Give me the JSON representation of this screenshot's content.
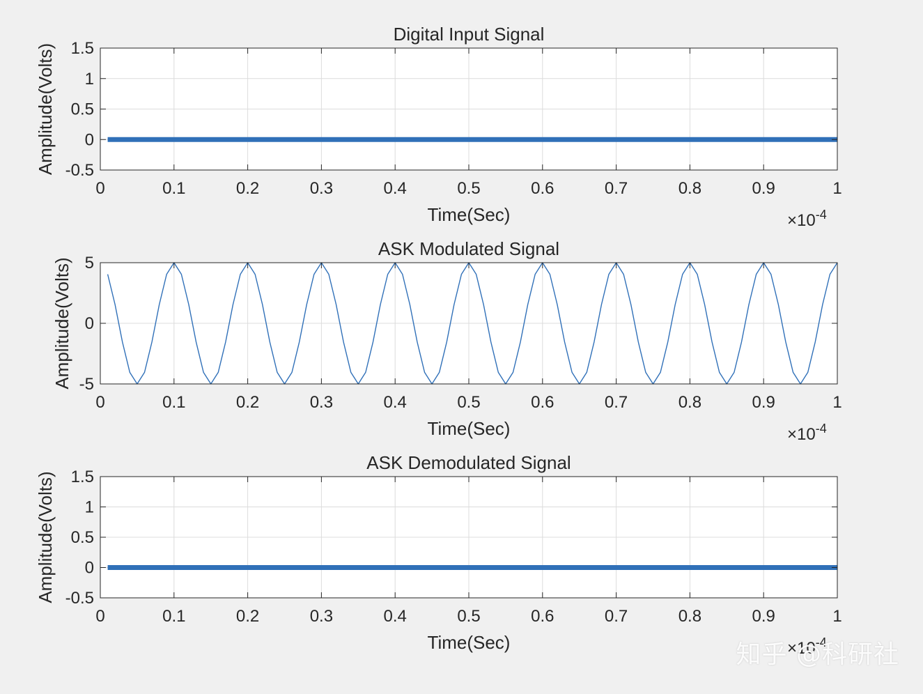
{
  "figure": {
    "background": "#f0f0f0",
    "axes_background": "#ffffff",
    "line_color": "#3070b8",
    "grid_color": "#dcdcdc",
    "watermark": "知乎 @科研社"
  },
  "chart_data": [
    {
      "type": "line",
      "title": "Digital Input Signal",
      "xlabel": "Time(Sec)",
      "ylabel": "Amplitude(Volts)",
      "x_exponent_label": "×10",
      "x_exponent": "-4",
      "xlim": [
        0,
        1
      ],
      "ylim": [
        -0.5,
        1.5
      ],
      "xticks": [
        "0",
        "0.1",
        "0.2",
        "0.3",
        "0.4",
        "0.5",
        "0.6",
        "0.7",
        "0.8",
        "0.9",
        "1"
      ],
      "xtick_values": [
        0,
        0.1,
        0.2,
        0.3,
        0.4,
        0.5,
        0.6,
        0.7,
        0.8,
        0.9,
        1
      ],
      "yticks": [
        "-0.5",
        "0",
        "0.5",
        "1",
        "1.5"
      ],
      "ytick_values": [
        -0.5,
        0,
        0.5,
        1,
        1.5
      ],
      "grid": true,
      "series": [
        {
          "style": "thick",
          "x": [
            0.01,
            1.0
          ],
          "y": [
            0,
            0
          ]
        }
      ]
    },
    {
      "type": "line",
      "title": "ASK Modulated Signal",
      "xlabel": "Time(Sec)",
      "ylabel": "Amplitude(Volts)",
      "x_exponent_label": "×10",
      "x_exponent": "-4",
      "xlim": [
        0,
        1
      ],
      "ylim": [
        -5,
        5
      ],
      "xticks": [
        "0",
        "0.1",
        "0.2",
        "0.3",
        "0.4",
        "0.5",
        "0.6",
        "0.7",
        "0.8",
        "0.9",
        "1"
      ],
      "xtick_values": [
        0,
        0.1,
        0.2,
        0.3,
        0.4,
        0.5,
        0.6,
        0.7,
        0.8,
        0.9,
        1
      ],
      "yticks": [
        "-5",
        "0",
        "5"
      ],
      "ytick_values": [
        -5,
        0,
        5
      ],
      "grid": true,
      "series": [
        {
          "style": "thin",
          "amplitude": 5,
          "period": 0.1,
          "x_start": 0.01,
          "x_end": 1.0,
          "x_step": 0.01
        }
      ]
    },
    {
      "type": "line",
      "title": "ASK Demodulated Signal",
      "xlabel": "Time(Sec)",
      "ylabel": "Amplitude(Volts)",
      "x_exponent_label": "×10",
      "x_exponent": "-4",
      "xlim": [
        0,
        1
      ],
      "ylim": [
        -0.5,
        1.5
      ],
      "xticks": [
        "0",
        "0.1",
        "0.2",
        "0.3",
        "0.4",
        "0.5",
        "0.6",
        "0.7",
        "0.8",
        "0.9",
        "1"
      ],
      "xtick_values": [
        0,
        0.1,
        0.2,
        0.3,
        0.4,
        0.5,
        0.6,
        0.7,
        0.8,
        0.9,
        1
      ],
      "yticks": [
        "-0.5",
        "0",
        "0.5",
        "1",
        "1.5"
      ],
      "ytick_values": [
        -0.5,
        0,
        0.5,
        1,
        1.5
      ],
      "grid": true,
      "series": [
        {
          "style": "thick",
          "x": [
            0.01,
            1.0
          ],
          "y": [
            0,
            0
          ]
        }
      ]
    }
  ]
}
